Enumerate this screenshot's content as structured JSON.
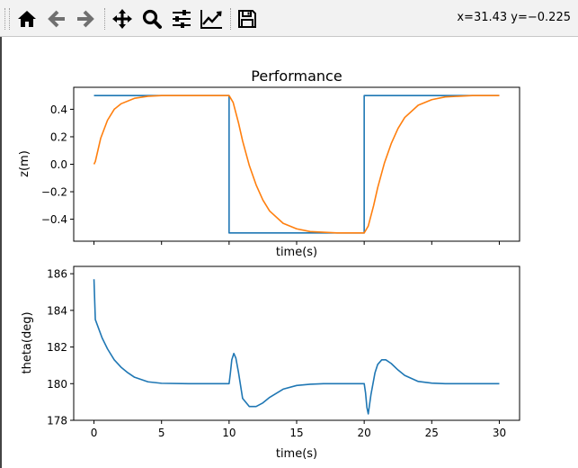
{
  "toolbar": {
    "coords_text": "x=31.43 y=−0.225",
    "buttons": [
      "home-icon",
      "back-arrow-icon",
      "forward-arrow-icon",
      "pan-icon",
      "zoom-icon",
      "configure-subplots-icon",
      "edit-curves-icon",
      "save-icon"
    ]
  },
  "chart_data": [
    {
      "type": "line",
      "title": "Performance",
      "xlabel": "time(s)",
      "ylabel": "z(m)",
      "xlim": [
        -1.5,
        31.5
      ],
      "ylim": [
        -0.56,
        0.56
      ],
      "xticks": [
        0,
        5,
        10,
        15,
        20,
        25,
        30
      ],
      "xtick_labels_visible": false,
      "yticks": [
        -0.4,
        -0.2,
        0.0,
        0.2,
        0.4
      ],
      "ytick_labels": [
        "−0.4",
        "−0.2",
        "0.0",
        "0.2",
        "0.4"
      ],
      "series": [
        {
          "color": "#1f77b4",
          "x": [
            0,
            10,
            10,
            20,
            20,
            30
          ],
          "y": [
            0.5,
            0.5,
            -0.5,
            -0.5,
            0.5,
            0.5
          ]
        },
        {
          "color": "#ff7f0e",
          "x": [
            0,
            0.1,
            0.5,
            1,
            1.5,
            2,
            3,
            4,
            5,
            7,
            10,
            10.3,
            10.7,
            11,
            11.5,
            12,
            12.5,
            13,
            14,
            15,
            16,
            17,
            18,
            20,
            20.3,
            20.7,
            21,
            21.5,
            22,
            22.5,
            23,
            24,
            25,
            26,
            27,
            28,
            30
          ],
          "y": [
            0.0,
            0.02,
            0.19,
            0.32,
            0.4,
            0.44,
            0.48,
            0.495,
            0.5,
            0.5,
            0.5,
            0.45,
            0.3,
            0.17,
            -0.01,
            -0.15,
            -0.26,
            -0.34,
            -0.43,
            -0.47,
            -0.49,
            -0.495,
            -0.5,
            -0.5,
            -0.45,
            -0.3,
            -0.17,
            0.01,
            0.15,
            0.26,
            0.34,
            0.43,
            0.47,
            0.49,
            0.495,
            0.5,
            0.5
          ]
        }
      ]
    },
    {
      "type": "line",
      "xlabel": "time(s)",
      "ylabel": "theta(deg)",
      "xlim": [
        -1.5,
        31.5
      ],
      "ylim": [
        178.0,
        186.4
      ],
      "xticks": [
        0,
        5,
        10,
        15,
        20,
        25,
        30
      ],
      "xtick_labels": [
        "0",
        "5",
        "10",
        "15",
        "20",
        "25",
        "30"
      ],
      "yticks": [
        178,
        180,
        182,
        184,
        186
      ],
      "ytick_labels": [
        "178",
        "180",
        "182",
        "184",
        "186"
      ],
      "series": [
        {
          "color": "#1f77b4",
          "x": [
            0,
            0.1,
            0.3,
            0.6,
            1,
            1.5,
            2,
            2.5,
            3,
            4,
            5,
            7,
            10,
            10.1,
            10.2,
            10.35,
            10.5,
            10.7,
            11,
            11.5,
            12,
            12.5,
            13,
            14,
            15,
            16,
            17,
            18,
            20,
            20.1,
            20.2,
            20.3,
            20.5,
            20.8,
            21,
            21.3,
            21.6,
            22,
            22.5,
            23,
            24,
            25,
            26,
            28,
            30
          ],
          "y": [
            185.7,
            183.5,
            183.1,
            182.5,
            181.9,
            181.3,
            180.9,
            180.6,
            180.35,
            180.1,
            180.02,
            180.0,
            180.0,
            180.6,
            181.3,
            181.65,
            181.4,
            180.6,
            179.2,
            178.75,
            178.75,
            178.95,
            179.25,
            179.7,
            179.9,
            179.97,
            180.0,
            180.0,
            180.0,
            179.5,
            178.7,
            178.35,
            179.4,
            180.6,
            181.05,
            181.3,
            181.3,
            181.1,
            180.75,
            180.45,
            180.12,
            180.03,
            180.0,
            180.0,
            180.0
          ]
        }
      ]
    }
  ]
}
